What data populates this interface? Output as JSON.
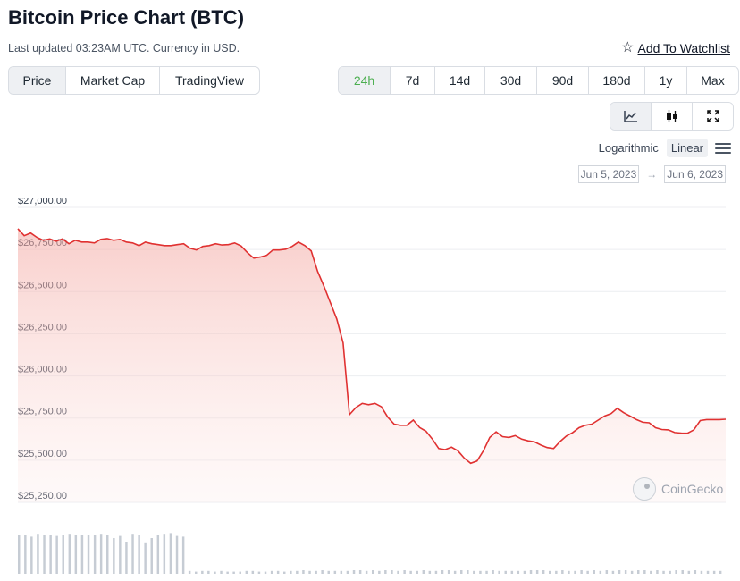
{
  "header": {
    "title": "Bitcoin Price Chart (BTC)",
    "updated": "Last updated 03:23AM UTC. Currency in USD.",
    "watchlist_label": "Add To Watchlist",
    "watchlist_icon": "star-icon"
  },
  "view_tabs": [
    "Price",
    "Market Cap",
    "TradingView"
  ],
  "view_active": "Price",
  "range_tabs": [
    "24h",
    "7d",
    "14d",
    "30d",
    "90d",
    "180d",
    "1y",
    "Max"
  ],
  "range_active": "24h",
  "chart_type_icons": [
    "line-chart-icon",
    "candlestick-icon",
    "fullscreen-icon"
  ],
  "scale": {
    "logarithmic": "Logarithmic",
    "linear": "Linear",
    "active": "Linear",
    "menu_icon": "menu-icon"
  },
  "date_range": {
    "from": "Jun 5, 2023",
    "arrow": "→",
    "to": "Jun 6, 2023"
  },
  "brand": "CoinGecko",
  "colors": {
    "line": "#e03131",
    "range_active_text": "#4caf50",
    "volume": "#c6ccd4"
  },
  "chart_data": {
    "type": "area",
    "title": "",
    "xlabel": "",
    "ylabel": "",
    "ylim": [
      25250,
      27000
    ],
    "y_ticks": [
      "$27,000.00",
      "$26,750.00",
      "$26,500.00",
      "$26,250.00",
      "$26,000.00",
      "$25,750.00",
      "$25,500.00",
      "$25,250.00"
    ],
    "y_tick_values": [
      27000,
      26750,
      26500,
      26250,
      26000,
      25750,
      25500,
      25250
    ],
    "grid": true,
    "series": [
      {
        "values": [
          26873,
          26832,
          26848,
          26822,
          26805,
          26813,
          26799,
          26813,
          26784,
          26805,
          26794,
          26794,
          26789,
          26810,
          26815,
          26805,
          26810,
          26794,
          26789,
          26773,
          26794,
          26784,
          26779,
          26773,
          26773,
          26779,
          26784,
          26757,
          26747,
          26768,
          26773,
          26784,
          26777,
          26779,
          26789,
          26771,
          26731,
          26699,
          26705,
          26715,
          26747,
          26747,
          26752,
          26768,
          26794,
          26773,
          26742,
          26620,
          26532,
          26435,
          26338,
          26196,
          25770,
          25812,
          25837,
          25829,
          25837,
          25817,
          25756,
          25714,
          25707,
          25707,
          25738,
          25694,
          25672,
          25625,
          25569,
          25563,
          25577,
          25556,
          25512,
          25482,
          25495,
          25556,
          25635,
          25668,
          25640,
          25635,
          25646,
          25625,
          25615,
          25609,
          25590,
          25575,
          25569,
          25610,
          25643,
          25664,
          25693,
          25707,
          25714,
          25738,
          25762,
          25776,
          25808,
          25782,
          25762,
          25741,
          25725,
          25722,
          25693,
          25682,
          25680,
          25664,
          25661,
          25660,
          25680,
          25735,
          25741,
          25741,
          25741,
          25743
        ]
      }
    ],
    "volume": [
      {
        "values": [
          0.55,
          0.55,
          0.52,
          0.56,
          0.55,
          0.55,
          0.53,
          0.55,
          0.56,
          0.55,
          0.54,
          0.55,
          0.55,
          0.56,
          0.55,
          0.5,
          0.53,
          0.45,
          0.56,
          0.55,
          0.44,
          0.5,
          0.54,
          0.56,
          0.57,
          0.53,
          0.52,
          0.04,
          0.03,
          0.04,
          0.04,
          0.03,
          0.04,
          0.03,
          0.03,
          0.03,
          0.04,
          0.04,
          0.03,
          0.03,
          0.04,
          0.04,
          0.03,
          0.04,
          0.04,
          0.05,
          0.04,
          0.04,
          0.05,
          0.04,
          0.04,
          0.04,
          0.04,
          0.05,
          0.05,
          0.04,
          0.05,
          0.04,
          0.05,
          0.05,
          0.04,
          0.05,
          0.04,
          0.04,
          0.05,
          0.04,
          0.04,
          0.05,
          0.05,
          0.04,
          0.05,
          0.05,
          0.04,
          0.04,
          0.04,
          0.05,
          0.04,
          0.04,
          0.04,
          0.04,
          0.04,
          0.05,
          0.05,
          0.05,
          0.04,
          0.04,
          0.05,
          0.04,
          0.04,
          0.05,
          0.04,
          0.05,
          0.04,
          0.05,
          0.04,
          0.05,
          0.05,
          0.04,
          0.05,
          0.05,
          0.04,
          0.05,
          0.04,
          0.04,
          0.05,
          0.05,
          0.04,
          0.05,
          0.04,
          0.04,
          0.04,
          0.04
        ]
      }
    ]
  }
}
